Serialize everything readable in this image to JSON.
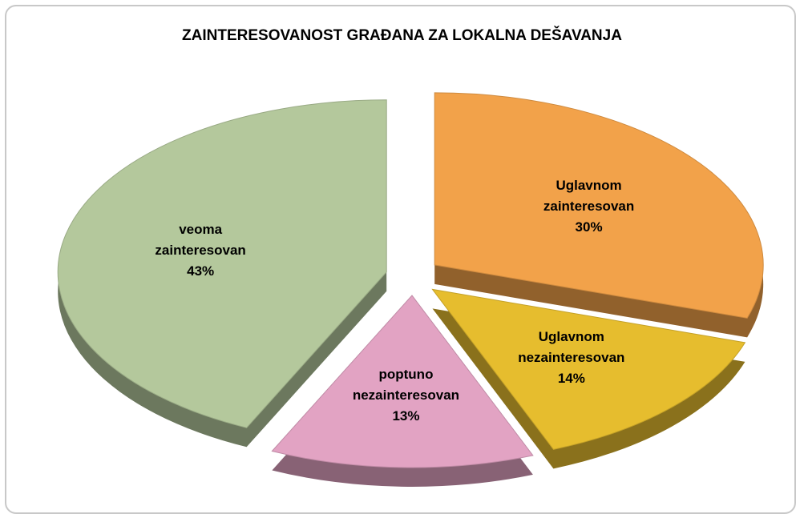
{
  "chart_data": {
    "type": "pie",
    "title": "ZAINTERESOVANOST GRAĐANA ZA LOKALNA DEŠAVANJA",
    "categories": [
      "Uglavnom zainteresovan",
      "Uglavnom nezainteresovan",
      "poptuno nezainteresovan",
      "veoma zainteresovan"
    ],
    "values": [
      30,
      14,
      13,
      43
    ],
    "value_labels": [
      "30%",
      "14%",
      "13%",
      "43%"
    ],
    "colors": [
      "#f2a24a",
      "#e6bd2e",
      "#e2a3c3",
      "#b4c89c"
    ]
  }
}
